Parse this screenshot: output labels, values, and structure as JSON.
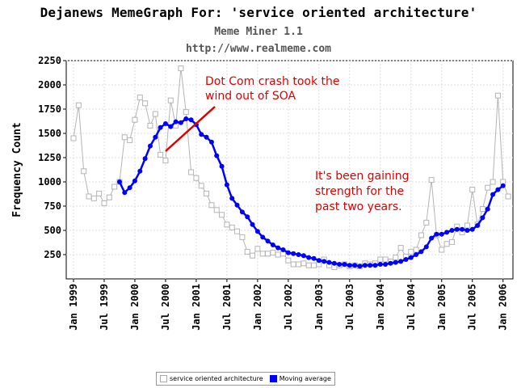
{
  "header": {
    "title": "Dejanews MemeGraph For: 'service oriented architecture'",
    "subtitle": "Meme Miner 1.1",
    "url": "http://www.realmeme.com"
  },
  "colors": {
    "raw": "#b4b4b4",
    "average": "#0000ff",
    "annotation": "#e00000",
    "grid": "#dddddd"
  },
  "chart_data": {
    "type": "line",
    "title": "Dejanews MemeGraph For: 'service oriented architecture'",
    "ylabel": "Frequency Count",
    "xlabel": "",
    "ylim": [
      0,
      2250
    ],
    "yticks": [
      250,
      500,
      750,
      1000,
      1250,
      1500,
      1750,
      2000,
      2250
    ],
    "xticks": [
      "Jan 1999",
      "Jul 1999",
      "Jan 2000",
      "Jul 2000",
      "Jan 2001",
      "Jul 2001",
      "Jan 2002",
      "Jul 2002",
      "Jan 2003",
      "Jul 2003",
      "Jan 2004",
      "Jul 2004",
      "Jan 2005",
      "Jul 2005",
      "Jan 2006"
    ],
    "grid": true,
    "legend_position": "bottom-center",
    "series": [
      {
        "name": "service oriented architecture",
        "marker": "open-square",
        "values": [
          1450,
          1790,
          1110,
          850,
          830,
          880,
          780,
          840,
          950,
          1000,
          1460,
          1430,
          1640,
          1870,
          1810,
          1580,
          1700,
          1280,
          1220,
          1840,
          1580,
          2170,
          1720,
          1100,
          1040,
          960,
          880,
          760,
          710,
          660,
          560,
          530,
          490,
          430,
          280,
          240,
          310,
          260,
          260,
          270,
          250,
          260,
          190,
          150,
          150,
          160,
          140,
          140,
          150,
          200,
          140,
          120,
          140,
          150,
          130,
          140,
          130,
          160,
          150,
          160,
          200,
          200,
          180,
          220,
          320,
          230,
          280,
          300,
          450,
          580,
          1020,
          450,
          300,
          360,
          380,
          540,
          480,
          550,
          920,
          560,
          720,
          940,
          1000,
          1890,
          1000,
          850
        ]
      },
      {
        "name": "Moving average",
        "marker": "filled-circle",
        "start_index": 9,
        "values": [
          1000,
          890,
          940,
          1010,
          1110,
          1240,
          1370,
          1460,
          1560,
          1600,
          1570,
          1620,
          1610,
          1650,
          1640,
          1590,
          1490,
          1460,
          1410,
          1270,
          1160,
          970,
          830,
          760,
          690,
          640,
          560,
          490,
          430,
          390,
          350,
          320,
          300,
          270,
          260,
          250,
          240,
          220,
          210,
          190,
          180,
          170,
          160,
          150,
          150,
          140,
          140,
          130,
          140,
          140,
          140,
          150,
          150,
          160,
          170,
          180,
          200,
          220,
          250,
          280,
          330,
          420,
          460,
          460,
          480,
          500,
          510,
          510,
          500,
          510,
          550,
          630,
          720,
          870,
          920,
          960
        ]
      }
    ],
    "annotations": [
      {
        "text_lines": [
          "Dot Com crash took the",
          "wind out of SOA"
        ]
      },
      {
        "text_lines": [
          "It's been gaining",
          "strength for the",
          "past two years."
        ]
      }
    ]
  },
  "legend": {
    "raw_label": "service oriented architecture",
    "average_label": "Moving average"
  }
}
